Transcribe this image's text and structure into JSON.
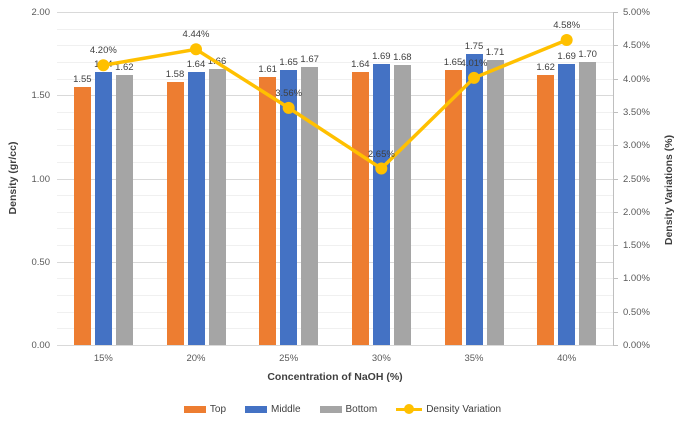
{
  "chart_data": {
    "type": "combo-bar-line",
    "categories": [
      "15%",
      "20%",
      "25%",
      "30%",
      "35%",
      "40%"
    ],
    "bar_series": [
      {
        "name": "Top",
        "color": "#ED7D31",
        "values": [
          1.55,
          1.58,
          1.61,
          1.64,
          1.65,
          1.62
        ],
        "labels": [
          "1.55",
          "1.58",
          "1.61",
          "1.64",
          "1.65",
          "1.62"
        ]
      },
      {
        "name": "Middle",
        "color": "#4472C4",
        "values": [
          1.64,
          1.64,
          1.65,
          1.69,
          1.75,
          1.69
        ],
        "labels": [
          "1.64",
          "1.64",
          "1.65",
          "1.69",
          "1.75",
          "1.69"
        ]
      },
      {
        "name": "Bottom",
        "color": "#A5A5A5",
        "values": [
          1.62,
          1.66,
          1.67,
          1.68,
          1.71,
          1.7
        ],
        "labels": [
          "1.62",
          "1.66",
          "1.67",
          "1.68",
          "1.71",
          "1.70"
        ]
      }
    ],
    "line_series": {
      "name": "Density Variation",
      "color": "#FFC000",
      "values": [
        4.2,
        4.44,
        3.56,
        2.65,
        4.01,
        4.58
      ],
      "labels": [
        "4.20%",
        "4.44%",
        "3.56%",
        "2.65%",
        "4.01%",
        "4.58%"
      ]
    },
    "left_axis": {
      "title": "Density (gr/cc)",
      "min": 0,
      "max": 2,
      "ticks": [
        "2.00",
        "1.50",
        "1.00",
        "0.50",
        "0.00"
      ]
    },
    "right_axis": {
      "title": "Density Variations (%)",
      "min": 0,
      "max": 5,
      "ticks": [
        "5.00%",
        "4.50%",
        "4.00%",
        "3.50%",
        "3.00%",
        "2.50%",
        "2.00%",
        "1.50%",
        "1.00%",
        "0.50%",
        "0.00%"
      ]
    },
    "x_axis": {
      "title": "Concentration of NaOH (%)"
    },
    "grid": {
      "minor_divisions": 20,
      "major_every": 5,
      "minor_color": "#f0f0f0",
      "major_color": "#d9d9d9"
    },
    "legend_position": "bottom"
  },
  "legend": {
    "items": [
      {
        "label": "Top",
        "color": "#ED7D31",
        "type": "bar"
      },
      {
        "label": "Middle",
        "color": "#4472C4",
        "type": "bar"
      },
      {
        "label": "Bottom",
        "color": "#A5A5A5",
        "type": "bar"
      },
      {
        "label": "Density Variation",
        "color": "#FFC000",
        "type": "line"
      }
    ]
  }
}
